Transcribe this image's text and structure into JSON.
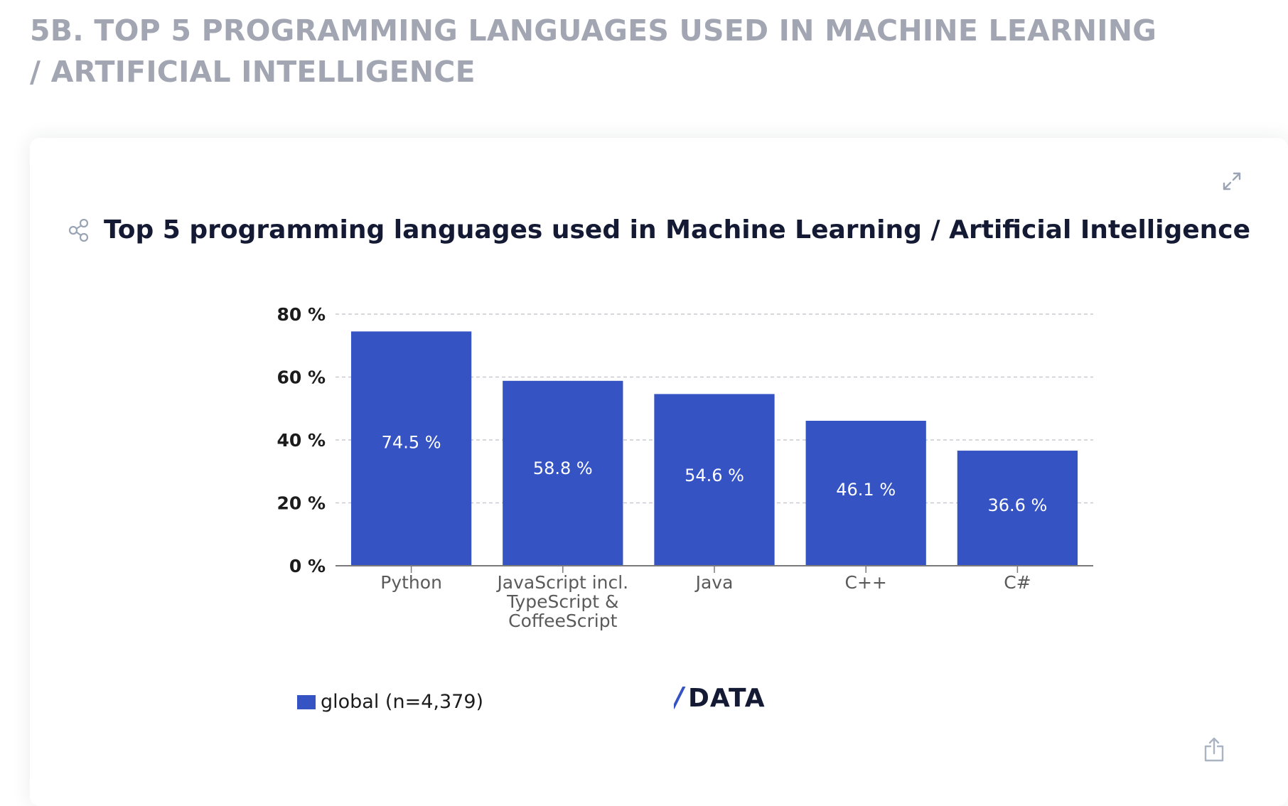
{
  "section": {
    "heading": "5B. TOP 5 PROGRAMMING LANGUAGES USED IN MACHINE LEARNING / ARTIFICIAL INTELLIGENCE"
  },
  "toolbar": {
    "share_icon": "share-icon",
    "expand_icon": "expand-icon",
    "export_icon": "export-icon"
  },
  "logo": {
    "text": "/DATA",
    "color": "#141a33",
    "accent": "#3653c4"
  },
  "chart_data": {
    "type": "bar",
    "title": "Top 5 programming languages used in Machine Learning / Artificial Intelligence",
    "categories": [
      [
        "Python"
      ],
      [
        "JavaScript incl.",
        "TypeScript &",
        "CoffeeScript"
      ],
      [
        "Java"
      ],
      [
        "C++"
      ],
      [
        "C#"
      ]
    ],
    "series": [
      {
        "name": "global (n=4,379)",
        "values": [
          74.5,
          58.8,
          54.6,
          46.1,
          36.6
        ],
        "labels": [
          "74.5 %",
          "58.8 %",
          "54.6 %",
          "46.1 %",
          "36.6 %"
        ],
        "color": "#3653c4"
      }
    ],
    "yticks": [
      0,
      20,
      40,
      60,
      80
    ],
    "ytick_labels": [
      "0 %",
      "20 %",
      "40 %",
      "60 %",
      "80 %"
    ],
    "ylim": [
      0,
      80
    ],
    "grid": true,
    "legend_position": "bottom-left",
    "colors": {
      "grid": "#c9cbd1",
      "axis": "#7a7a7a",
      "tick_text": "#1c1c1c",
      "category_text": "#5a5a5a",
      "bar_label": "#ffffff"
    }
  }
}
